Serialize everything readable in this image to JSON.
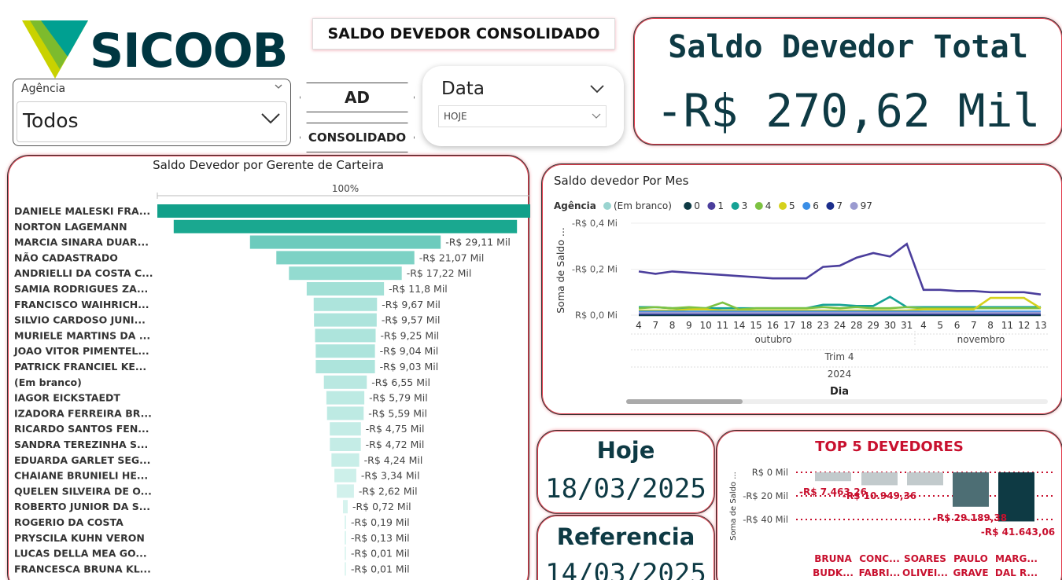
{
  "brand": {
    "logo_text": "SICOOB",
    "colors": {
      "primary": "#003641",
      "accent_teal": "#00a091",
      "accent_lime": "#c9d200"
    }
  },
  "header": {
    "report_title": "SALDO DEVEDOR CONSOLIDADO"
  },
  "slicers": {
    "agencia": {
      "label": "Agência",
      "value": "Todos"
    },
    "data": {
      "label": "Data",
      "value": "HOJE"
    }
  },
  "nav": {
    "ad_label": "AD",
    "consolidado_label": "CONSOLIDADO"
  },
  "kpi_total": {
    "title": "Saldo Devedor Total",
    "value": "-R$ 270,62 Mil"
  },
  "hoje": {
    "title": "Hoje",
    "value": "18/03/2025"
  },
  "referencia": {
    "title": "Referencia",
    "value": "14/03/2025"
  },
  "chart_data": [
    {
      "type": "bar",
      "title": "Saldo Devedor por Gerente de Carteira",
      "axis_top_label": "100%",
      "categories": [
        "DANIELE MALESKI FRA...",
        "NORTON LAGEMANN",
        "MARCIA SINARA DUAR...",
        "NÃO CADASTRADO",
        "ANDRIELLI DA COSTA C...",
        "SAMIA RODRIGUES ZA...",
        "FRANCISCO WAIHRICH...",
        "SILVIO CARDOSO JUNI...",
        "MURIELE MARTINS DA ...",
        "JOAO VITOR PIMENTEL...",
        "PATRICK FRANCIEL KE...",
        "(Em branco)",
        "IAGOR EICKSTAEDT",
        "IZADORA FERREIRA BR...",
        "RICARDO SANTOS FEN...",
        "SANDRA TEREZINHA S...",
        "EDUARDA GARLET SEG...",
        "CHAIANE BRUNIELI HE...",
        "QUELEN SILVEIRA DE O...",
        "ROBERTO JUNIOR DA S...",
        "ROGERIO DA COSTA",
        "PRYSCILA KUHN VERON",
        "LUCAS DELLA MEA GO...",
        "FRANCESCA BRUNA KL..."
      ],
      "values": [
        57.4,
        52.4,
        29.11,
        21.07,
        17.22,
        11.8,
        9.67,
        9.57,
        9.25,
        9.04,
        9.03,
        6.55,
        5.79,
        5.59,
        4.75,
        4.72,
        4.24,
        3.34,
        2.62,
        0.72,
        0.19,
        0.13,
        0.01,
        0.01
      ],
      "labels": [
        "",
        "",
        "-R$ 29,11 Mil",
        "-R$ 21,07 Mil",
        "-R$ 17,22 Mil",
        "-R$ 11,8 Mil",
        "-R$ 9,67 Mil",
        "-R$ 9,57 Mil",
        "-R$ 9,25 Mil",
        "-R$ 9,04 Mil",
        "-R$ 9,03 Mil",
        "-R$ 6,55 Mil",
        "-R$ 5,79 Mil",
        "-R$ 5,59 Mil",
        "-R$ 4,75 Mil",
        "-R$ 4,72 Mil",
        "-R$ 4,24 Mil",
        "-R$ 3,34 Mil",
        "-R$ 2,62 Mil",
        "-R$ 0,72 Mil",
        "-R$ 0,19 Mil",
        "-R$ 0,13 Mil",
        "-R$ 0,01 Mil",
        "-R$ 0,01 Mil"
      ],
      "colors": [
        "#12a08a",
        "#1aa890",
        "#6ccbbd",
        "#7dd2c5",
        "#93dbd0",
        "#a2e0d6",
        "#ade4dc",
        "#ade4dc",
        "#ade4dc",
        "#ade4dc",
        "#ade4dc",
        "#b9e8e1",
        "#bdeae3",
        "#bdeae3",
        "#c4ece6",
        "#c4ece6",
        "#c8eee8",
        "#cdf0ea",
        "#d2f1ec",
        "#d6f3ee",
        "#dcf5f1",
        "#dcf5f1",
        "#e0f6f2",
        "#e0f6f2"
      ]
    },
    {
      "type": "line",
      "title": "Saldo devedor Por Mes",
      "legend_title": "Agência",
      "legend_position": "top-left",
      "ylabel": "Soma de Saldo ...",
      "xlabel": "Dia",
      "y_ticks": [
        "-R$ 0,4 Mi",
        "-R$ 0,2 Mi",
        "R$ 0,0 Mi"
      ],
      "ylim": [
        0,
        0.4
      ],
      "x": [
        "4",
        "7",
        "8",
        "9",
        "10",
        "11",
        "14",
        "15",
        "16",
        "17",
        "18",
        "23",
        "24",
        "28",
        "29",
        "30",
        "31",
        "4",
        "5",
        "6",
        "7",
        "8",
        "11",
        "12",
        "13"
      ],
      "month_labels": [
        "outubro",
        "novembro"
      ],
      "quarter_label": "Trim 4",
      "year_label": "2024",
      "series": [
        {
          "name": "(Em branco)",
          "color": "#9ad4d0",
          "values": [
            0.01,
            0.01,
            0.01,
            0.01,
            0.01,
            0.01,
            0.01,
            0.01,
            0.01,
            0.01,
            0.01,
            0.01,
            0.01,
            0.01,
            0.01,
            0.01,
            0.01,
            0.01,
            0.01,
            0.01,
            0.01,
            0.01,
            0.01,
            0.01,
            0.01
          ]
        },
        {
          "name": "0",
          "color": "#0e3a44",
          "values": [
            0.0,
            0.0,
            0.0,
            0.0,
            0.0,
            0.0,
            0.0,
            0.0,
            0.0,
            0.0,
            0.0,
            0.0,
            0.0,
            0.0,
            0.0,
            0.0,
            0.0,
            0.0,
            0.0,
            0.0,
            0.0,
            0.0,
            0.0,
            0.0,
            0.0
          ]
        },
        {
          "name": "1",
          "color": "#4b3e9c",
          "values": [
            0.19,
            0.18,
            0.19,
            0.185,
            0.18,
            0.175,
            0.17,
            0.165,
            0.16,
            0.16,
            0.16,
            0.21,
            0.215,
            0.25,
            0.27,
            0.255,
            0.31,
            0.11,
            0.11,
            0.105,
            0.105,
            0.1,
            0.1,
            0.1,
            0.09
          ]
        },
        {
          "name": "3",
          "color": "#15a295",
          "values": [
            0.035,
            0.035,
            0.03,
            0.03,
            0.03,
            0.03,
            0.03,
            0.03,
            0.03,
            0.03,
            0.03,
            0.045,
            0.045,
            0.04,
            0.04,
            0.08,
            0.035,
            0.035,
            0.035,
            0.035,
            0.035,
            0.035,
            0.035,
            0.035,
            0.035
          ]
        },
        {
          "name": "4",
          "color": "#7dc242",
          "values": [
            0.03,
            0.035,
            0.03,
            0.035,
            0.03,
            0.055,
            0.025,
            0.03,
            0.03,
            0.03,
            0.03,
            0.035,
            0.03,
            0.035,
            0.03,
            0.03,
            0.035,
            0.03,
            0.03,
            0.03,
            0.03,
            0.03,
            0.03,
            0.03,
            0.03
          ]
        },
        {
          "name": "5",
          "color": "#d5d11c",
          "values": [
            0.02,
            0.02,
            0.02,
            0.025,
            0.025,
            0.02,
            0.02,
            0.02,
            0.02,
            0.02,
            0.02,
            0.02,
            0.02,
            0.02,
            0.02,
            0.02,
            0.02,
            0.025,
            0.025,
            0.025,
            0.025,
            0.075,
            0.075,
            0.075,
            0.03
          ]
        },
        {
          "name": "6",
          "color": "#3a8ee6",
          "values": [
            0.015,
            0.015,
            0.015,
            0.015,
            0.015,
            0.015,
            0.015,
            0.015,
            0.015,
            0.015,
            0.015,
            0.015,
            0.015,
            0.015,
            0.015,
            0.015,
            0.015,
            0.015,
            0.015,
            0.015,
            0.015,
            0.015,
            0.015,
            0.015,
            0.015
          ]
        },
        {
          "name": "7",
          "color": "#1c2e8c",
          "values": [
            0.005,
            0.005,
            0.005,
            0.005,
            0.005,
            0.005,
            0.005,
            0.005,
            0.005,
            0.005,
            0.005,
            0.005,
            0.005,
            0.005,
            0.005,
            0.005,
            0.005,
            0.005,
            0.005,
            0.005,
            0.005,
            0.005,
            0.005,
            0.005,
            0.005
          ]
        },
        {
          "name": "97",
          "color": "#9a9ad0",
          "values": [
            0.01,
            0.01,
            0.01,
            0.01,
            0.01,
            0.01,
            0.01,
            0.01,
            0.01,
            0.01,
            0.01,
            0.01,
            0.01,
            0.01,
            0.01,
            0.01,
            0.01,
            0.01,
            0.01,
            0.01,
            0.01,
            0.01,
            0.01,
            0.01,
            0.01
          ]
        }
      ]
    },
    {
      "type": "bar",
      "title": "TOP 5 DEVEDORES",
      "ylabel": "Soma de Saldo ...",
      "y_ticks": [
        "R$ 0 Mil",
        "-R$ 20 Mil",
        "-R$ 40 Mil"
      ],
      "ylim": [
        0,
        41.643
      ],
      "categories": [
        [
          "BRUNA",
          "BUDK..."
        ],
        [
          "CONC...",
          "FABRI..."
        ],
        [
          "SOARES",
          "OLIVEI..."
        ],
        [
          "PAULO",
          "GRAVE"
        ],
        [
          "MARG...",
          "DAL R..."
        ]
      ],
      "values": [
        7.46326,
        10.94936,
        10.94936,
        29.18938,
        41.64306
      ],
      "labels": [
        "-R$ 7.463,26",
        "-R$ 10.949,36",
        "",
        "-R$ 29.189,38",
        "-R$ 41.643,06"
      ],
      "colors": [
        "#c2cacc",
        "#c2cacc",
        "#c2cacc",
        "#4d6e74",
        "#0e3a44"
      ]
    }
  ]
}
